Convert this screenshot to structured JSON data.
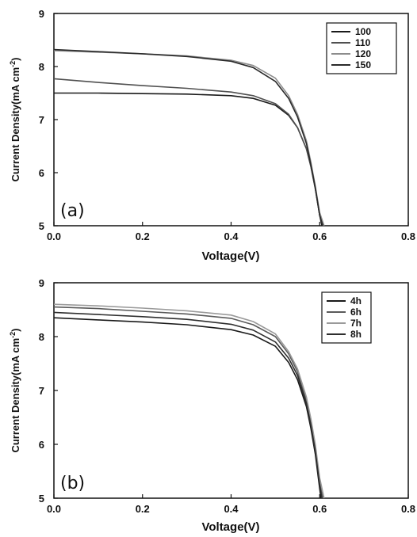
{
  "chart_data": [
    {
      "type": "line",
      "panel_label": "(a)",
      "xlabel": "Voltage(V)",
      "ylabel": "Current Density(mA cm",
      "ylabel_sup": "-2",
      "ylabel_tail": ")",
      "xlim": [
        0.0,
        0.8
      ],
      "ylim": [
        5,
        9
      ],
      "xticks": [
        "0.0",
        "0.2",
        "0.4",
        "0.6",
        "0.8"
      ],
      "yticks": [
        "5",
        "6",
        "7",
        "8",
        "9"
      ],
      "legend_position": "top-right",
      "series": [
        {
          "name": "100",
          "color": "#1a1a1a",
          "x": [
            0.0,
            0.1,
            0.2,
            0.3,
            0.4,
            0.45,
            0.5,
            0.53,
            0.55,
            0.57,
            0.58,
            0.59,
            0.6,
            0.605
          ],
          "y": [
            7.5,
            7.5,
            7.49,
            7.48,
            7.45,
            7.4,
            7.27,
            7.08,
            6.85,
            6.45,
            6.12,
            5.7,
            5.2,
            5.0
          ]
        },
        {
          "name": "110",
          "color": "#505050",
          "x": [
            0.0,
            0.1,
            0.2,
            0.3,
            0.4,
            0.45,
            0.5,
            0.53,
            0.55,
            0.57,
            0.58,
            0.59,
            0.6,
            0.607
          ],
          "y": [
            7.77,
            7.7,
            7.64,
            7.59,
            7.52,
            7.45,
            7.3,
            7.1,
            6.85,
            6.45,
            6.12,
            5.7,
            5.2,
            5.0
          ]
        },
        {
          "name": "120",
          "color": "#8c8c8c",
          "x": [
            0.0,
            0.1,
            0.2,
            0.3,
            0.4,
            0.45,
            0.5,
            0.53,
            0.55,
            0.57,
            0.58,
            0.59,
            0.6,
            0.61
          ],
          "y": [
            8.3,
            8.27,
            8.24,
            8.2,
            8.12,
            8.02,
            7.78,
            7.45,
            7.1,
            6.6,
            6.2,
            5.75,
            5.25,
            5.0
          ]
        },
        {
          "name": "150",
          "color": "#2a2a2a",
          "x": [
            0.0,
            0.1,
            0.2,
            0.3,
            0.4,
            0.45,
            0.5,
            0.53,
            0.55,
            0.57,
            0.58,
            0.59,
            0.6,
            0.607
          ],
          "y": [
            8.32,
            8.28,
            8.24,
            8.19,
            8.1,
            7.98,
            7.72,
            7.4,
            7.05,
            6.55,
            6.15,
            5.72,
            5.2,
            5.0
          ]
        }
      ]
    },
    {
      "type": "line",
      "panel_label": "(b)",
      "xlabel": "Voltage(V)",
      "ylabel": "Current Density(mA cm",
      "ylabel_sup": "-2",
      "ylabel_tail": ")",
      "xlim": [
        0.0,
        0.8
      ],
      "ylim": [
        5,
        9
      ],
      "xticks": [
        "0.0",
        "0.2",
        "0.4",
        "0.6",
        "0.8"
      ],
      "yticks": [
        "5",
        "6",
        "7",
        "8",
        "9"
      ],
      "legend_position": "top-right",
      "series": [
        {
          "name": "4h",
          "color": "#1a1a1a",
          "x": [
            0.0,
            0.1,
            0.2,
            0.3,
            0.4,
            0.45,
            0.5,
            0.53,
            0.55,
            0.57,
            0.58,
            0.59,
            0.6,
            0.603
          ],
          "y": [
            8.35,
            8.31,
            8.27,
            8.22,
            8.13,
            8.03,
            7.82,
            7.52,
            7.2,
            6.7,
            6.3,
            5.82,
            5.18,
            5.0
          ]
        },
        {
          "name": "6h",
          "color": "#5a5a5a",
          "x": [
            0.0,
            0.1,
            0.2,
            0.3,
            0.4,
            0.45,
            0.5,
            0.53,
            0.55,
            0.57,
            0.58,
            0.59,
            0.6,
            0.607
          ],
          "y": [
            8.55,
            8.52,
            8.47,
            8.42,
            8.34,
            8.22,
            8.0,
            7.68,
            7.35,
            6.82,
            6.42,
            5.95,
            5.3,
            5.0
          ]
        },
        {
          "name": "7h",
          "color": "#9a9a9a",
          "x": [
            0.0,
            0.1,
            0.2,
            0.3,
            0.4,
            0.45,
            0.5,
            0.53,
            0.55,
            0.57,
            0.58,
            0.59,
            0.6,
            0.61
          ],
          "y": [
            8.6,
            8.57,
            8.53,
            8.48,
            8.4,
            8.28,
            8.05,
            7.72,
            7.4,
            6.88,
            6.48,
            6.0,
            5.38,
            5.0
          ]
        },
        {
          "name": "8h",
          "color": "#2e2e2e",
          "x": [
            0.0,
            0.1,
            0.2,
            0.3,
            0.4,
            0.45,
            0.5,
            0.53,
            0.55,
            0.57,
            0.58,
            0.59,
            0.6,
            0.605
          ],
          "y": [
            8.45,
            8.41,
            8.37,
            8.32,
            8.23,
            8.12,
            7.9,
            7.6,
            7.28,
            6.76,
            6.36,
            5.88,
            5.24,
            5.0
          ]
        }
      ]
    }
  ]
}
